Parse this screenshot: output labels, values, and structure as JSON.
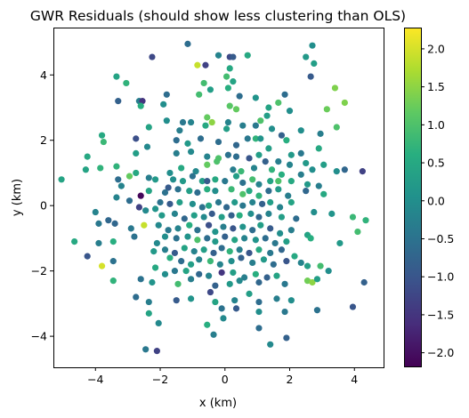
{
  "chart_data": {
    "type": "scatter",
    "title": "GWR Residuals (should show less clustering than OLS)",
    "xlabel": "x (km)",
    "ylabel": "y (km)",
    "xlim": [
      -5.3,
      4.9
    ],
    "ylim": [
      -4.95,
      5.45
    ],
    "xticks": [
      -4,
      -2,
      0,
      2,
      4
    ],
    "yticks": [
      -4,
      -2,
      0,
      2,
      4
    ],
    "grid": false,
    "colorbar": {
      "colormap": "viridis",
      "range": [
        -2.18,
        2.28
      ],
      "ticks": [
        -2.0,
        -1.5,
        -1.0,
        -0.5,
        0.0,
        0.5,
        1.0,
        1.5,
        2.0
      ],
      "tick_labels": [
        "−2.0",
        "−1.5",
        "−1.0",
        "−0.5",
        "0.0",
        "0.5",
        "1.0",
        "1.5",
        "2.0"
      ]
    },
    "points": [
      [
        -1.15,
        4.95,
        -0.6
      ],
      [
        -0.2,
        4.6,
        -0.2
      ],
      [
        0.15,
        4.55,
        -1.2
      ],
      [
        0.25,
        4.55,
        -0.9
      ],
      [
        0.7,
        4.6,
        0.5
      ],
      [
        2.7,
        4.9,
        0.0
      ],
      [
        -2.25,
        4.55,
        -1.2
      ],
      [
        -0.85,
        4.3,
        1.9
      ],
      [
        -0.6,
        4.3,
        -1.3
      ],
      [
        0.15,
        4.2,
        0.5
      ],
      [
        2.5,
        4.55,
        0.2
      ],
      [
        2.75,
        4.35,
        0.3
      ],
      [
        0.05,
        3.95,
        0.9
      ],
      [
        0.25,
        3.8,
        0.4
      ],
      [
        -3.35,
        3.95,
        0.4
      ],
      [
        -3.05,
        3.75,
        0.7
      ],
      [
        -0.65,
        3.75,
        0.9
      ],
      [
        -0.45,
        3.55,
        0.3
      ],
      [
        0.1,
        3.6,
        0.6
      ],
      [
        2.65,
        3.95,
        -0.9
      ],
      [
        3.4,
        3.6,
        1.4
      ],
      [
        -1.8,
        3.4,
        -0.6
      ],
      [
        -0.8,
        3.4,
        0.9
      ],
      [
        -2.65,
        3.2,
        -0.3
      ],
      [
        -2.55,
        3.2,
        -1.5
      ],
      [
        -3.3,
        3.2,
        -0.8
      ],
      [
        0.45,
        3.35,
        -0.6
      ],
      [
        0.95,
        3.3,
        0.1
      ],
      [
        1.85,
        3.4,
        -0.6
      ],
      [
        -2.6,
        3.05,
        0.6
      ],
      [
        0.15,
        3.05,
        1.1
      ],
      [
        1.35,
        3.0,
        0.4
      ],
      [
        0.35,
        2.95,
        1.2
      ],
      [
        3.15,
        2.95,
        1.25
      ],
      [
        3.7,
        3.15,
        1.4
      ],
      [
        -0.55,
        2.7,
        1.2
      ],
      [
        -1.8,
        2.6,
        0.0
      ],
      [
        -1.3,
        2.55,
        -0.4
      ],
      [
        -1.05,
        2.55,
        -0.2
      ],
      [
        -0.4,
        2.55,
        1.5
      ],
      [
        -0.6,
        2.45,
        0.5
      ],
      [
        0.1,
        2.55,
        -0.2
      ],
      [
        1.1,
        2.6,
        1.0
      ],
      [
        1.3,
        2.75,
        0.3
      ],
      [
        2.0,
        2.9,
        0.0
      ],
      [
        -2.35,
        2.4,
        0.4
      ],
      [
        -1.4,
        2.3,
        -0.3
      ],
      [
        0.05,
        2.35,
        0.3
      ],
      [
        0.55,
        2.45,
        -0.3
      ],
      [
        0.95,
        2.45,
        -0.4
      ],
      [
        1.45,
        2.35,
        0.0
      ],
      [
        1.75,
        2.15,
        -0.8
      ],
      [
        1.9,
        2.0,
        0.6
      ],
      [
        2.35,
        2.3,
        0.0
      ],
      [
        3.45,
        2.4,
        1.0
      ],
      [
        -3.8,
        2.15,
        0.5
      ],
      [
        -4.25,
        1.5,
        0.5
      ],
      [
        -4.3,
        1.1,
        0.4
      ],
      [
        -3.75,
        1.95,
        0.8
      ],
      [
        -2.75,
        1.6,
        0.3
      ],
      [
        -2.75,
        2.05,
        -1.1
      ],
      [
        -2.4,
        1.8,
        -0.1
      ],
      [
        -1.5,
        2.0,
        -0.6
      ],
      [
        -1.15,
        1.9,
        0.2
      ],
      [
        -0.75,
        2.05,
        -0.6
      ],
      [
        -0.2,
        1.95,
        -0.6
      ],
      [
        0.35,
        1.85,
        -0.7
      ],
      [
        0.7,
        2.05,
        -0.4
      ],
      [
        0.95,
        2.05,
        0.7
      ],
      [
        1.1,
        2.05,
        0.1
      ],
      [
        1.35,
        1.75,
        0.3
      ],
      [
        2.05,
        1.55,
        0.2
      ],
      [
        2.35,
        1.6,
        -0.4
      ],
      [
        2.9,
        1.75,
        0.5
      ],
      [
        -1.5,
        1.6,
        -0.3
      ],
      [
        -1.05,
        1.65,
        -0.1
      ],
      [
        -0.55,
        1.5,
        -0.2
      ],
      [
        -0.2,
        1.45,
        1.0
      ],
      [
        0.1,
        1.55,
        -0.5
      ],
      [
        0.35,
        1.5,
        -0.6
      ],
      [
        0.75,
        1.45,
        -1.0
      ],
      [
        1.05,
        1.55,
        0.3
      ],
      [
        1.25,
        1.35,
        -0.8
      ],
      [
        1.65,
        1.35,
        -0.3
      ],
      [
        2.0,
        1.25,
        -0.2
      ],
      [
        2.5,
        1.3,
        0.2
      ],
      [
        3.05,
        1.25,
        0.3
      ],
      [
        3.7,
        1.1,
        -0.7
      ],
      [
        -3.85,
        1.15,
        0.7
      ],
      [
        -3.35,
        1.2,
        0.7
      ],
      [
        -2.75,
        1.0,
        0.5
      ],
      [
        -2.35,
        0.85,
        -0.3
      ],
      [
        -1.7,
        1.0,
        0.0
      ],
      [
        -1.35,
        1.15,
        0.5
      ],
      [
        -0.9,
        1.05,
        -0.1
      ],
      [
        -0.55,
        1.25,
        1.2
      ],
      [
        -0.25,
        1.35,
        1.0
      ],
      [
        0.25,
        1.1,
        -0.3
      ],
      [
        0.5,
        1.05,
        0.8
      ],
      [
        0.9,
        1.15,
        -0.2
      ],
      [
        1.45,
        1.1,
        0.7
      ],
      [
        1.75,
        0.95,
        0.6
      ],
      [
        2.35,
        0.95,
        -0.3
      ],
      [
        2.7,
        1.1,
        0.0
      ],
      [
        3.45,
        1.05,
        0.0
      ],
      [
        4.25,
        1.05,
        -1.3
      ],
      [
        -5.05,
        0.8,
        0.4
      ],
      [
        -3.3,
        0.8,
        -0.6
      ],
      [
        -3.2,
        0.6,
        -0.2
      ],
      [
        -2.95,
        0.9,
        1.2
      ],
      [
        -2.15,
        0.8,
        0.2
      ],
      [
        -1.75,
        0.55,
        -0.9
      ],
      [
        -1.6,
        0.8,
        0.0
      ],
      [
        -1.3,
        0.75,
        0.2
      ],
      [
        -1.0,
        0.9,
        -0.5
      ],
      [
        -0.7,
        0.75,
        0.3
      ],
      [
        -0.55,
        0.75,
        -0.9
      ],
      [
        -0.3,
        0.8,
        0.5
      ],
      [
        0.0,
        0.75,
        -0.4
      ],
      [
        0.35,
        0.9,
        0.3
      ],
      [
        0.55,
        0.7,
        -0.5
      ],
      [
        0.85,
        0.8,
        0.9
      ],
      [
        1.05,
        0.65,
        -0.2
      ],
      [
        1.4,
        0.75,
        0.4
      ],
      [
        1.65,
        0.75,
        1.0
      ],
      [
        2.05,
        0.75,
        0.5
      ],
      [
        2.55,
        0.65,
        0.2
      ],
      [
        2.9,
        0.6,
        -0.3
      ],
      [
        -3.35,
        0.25,
        -0.2
      ],
      [
        -2.6,
        0.3,
        -2.1
      ],
      [
        -2.35,
        0.45,
        0.4
      ],
      [
        -1.85,
        0.4,
        -0.5
      ],
      [
        -1.45,
        0.5,
        -0.5
      ],
      [
        -1.1,
        0.45,
        0.3
      ],
      [
        -0.85,
        0.4,
        -0.6
      ],
      [
        -0.55,
        0.5,
        0.6
      ],
      [
        -0.3,
        0.45,
        0.0
      ],
      [
        0.2,
        0.5,
        0.8
      ],
      [
        0.55,
        0.35,
        1.0
      ],
      [
        0.75,
        0.45,
        0.5
      ],
      [
        1.05,
        0.3,
        0.7
      ],
      [
        1.35,
        0.45,
        -0.6
      ],
      [
        1.65,
        0.5,
        0.2
      ],
      [
        1.95,
        0.3,
        -0.3
      ],
      [
        2.5,
        0.45,
        -0.7
      ],
      [
        -4.0,
        -0.2,
        -0.2
      ],
      [
        -3.6,
        -0.45,
        -0.7
      ],
      [
        -3.4,
        -0.55,
        -0.7
      ],
      [
        -2.65,
        -0.05,
        -1.3
      ],
      [
        -2.15,
        -0.1,
        0.1
      ],
      [
        -2.0,
        0.1,
        -0.5
      ],
      [
        -1.7,
        0.05,
        -0.9
      ],
      [
        -1.4,
        0.1,
        0.3
      ],
      [
        -1.0,
        0.05,
        0.0
      ],
      [
        -0.7,
        -0.05,
        -0.5
      ],
      [
        -0.5,
        0.0,
        0.4
      ],
      [
        -0.2,
        0.1,
        -0.4
      ],
      [
        0.05,
        -0.05,
        -0.7
      ],
      [
        0.3,
        0.1,
        0.2
      ],
      [
        0.55,
        0.0,
        -0.4
      ],
      [
        0.85,
        0.1,
        -0.2
      ],
      [
        1.15,
        0.05,
        -0.8
      ],
      [
        1.4,
        0.1,
        0.3
      ],
      [
        1.7,
        -0.05,
        -0.2
      ],
      [
        2.05,
        0.1,
        0.4
      ],
      [
        2.75,
        -0.2,
        0.0
      ],
      [
        3.3,
        -0.25,
        0.1
      ],
      [
        -2.45,
        -0.15,
        -0.1
      ],
      [
        -1.95,
        -0.3,
        0.2
      ],
      [
        -1.55,
        -0.25,
        -0.2
      ],
      [
        -1.25,
        -0.4,
        -0.7
      ],
      [
        -0.95,
        -0.3,
        0.3
      ],
      [
        -0.65,
        -0.35,
        -0.1
      ],
      [
        -0.4,
        -0.25,
        -0.9
      ],
      [
        -0.1,
        -0.35,
        0.3
      ],
      [
        0.2,
        -0.3,
        -0.8
      ],
      [
        0.45,
        -0.3,
        0.6
      ],
      [
        0.8,
        -0.25,
        0.0
      ],
      [
        1.05,
        -0.35,
        -0.7
      ],
      [
        1.35,
        -0.25,
        -0.2
      ],
      [
        1.75,
        -0.35,
        0.3
      ],
      [
        2.2,
        -0.4,
        -0.6
      ],
      [
        3.95,
        -0.35,
        0.8
      ],
      [
        4.35,
        -0.45,
        0.7
      ],
      [
        -3.9,
        -0.55,
        -0.4
      ],
      [
        -2.9,
        -0.7,
        -0.4
      ],
      [
        -2.5,
        -0.6,
        1.9
      ],
      [
        -2.05,
        -0.6,
        -0.1
      ],
      [
        -1.75,
        -0.75,
        -0.4
      ],
      [
        -1.45,
        -0.7,
        -0.2
      ],
      [
        -1.1,
        -0.6,
        0.6
      ],
      [
        -0.85,
        -0.75,
        -0.5
      ],
      [
        -0.5,
        -0.6,
        -1.1
      ],
      [
        -0.3,
        -0.8,
        0.1
      ],
      [
        -0.05,
        -0.65,
        -0.3
      ],
      [
        0.25,
        -0.7,
        -1.0
      ],
      [
        0.55,
        -0.65,
        0.1
      ],
      [
        0.85,
        -0.75,
        -0.6
      ],
      [
        1.1,
        -0.6,
        0.3
      ],
      [
        1.4,
        -0.7,
        -0.9
      ],
      [
        1.7,
        -0.85,
        0.0
      ],
      [
        2.05,
        -0.75,
        -0.3
      ],
      [
        2.55,
        -0.9,
        0.4
      ],
      [
        -4.65,
        -1.1,
        0.5
      ],
      [
        -3.9,
        -1.15,
        -0.3
      ],
      [
        -3.45,
        -1.1,
        0.6
      ],
      [
        -2.8,
        -0.95,
        -0.5
      ],
      [
        -2.1,
        -1.15,
        -0.1
      ],
      [
        -1.85,
        -0.95,
        0.0
      ],
      [
        -1.5,
        -1.0,
        -0.5
      ],
      [
        -1.15,
        -0.95,
        0.1
      ],
      [
        -0.85,
        -1.05,
        1.0
      ],
      [
        -0.55,
        -1.0,
        -0.6
      ],
      [
        -0.3,
        -1.1,
        0.2
      ],
      [
        0.0,
        -0.95,
        -0.8
      ],
      [
        0.3,
        -1.05,
        0.4
      ],
      [
        0.6,
        -1.0,
        -0.2
      ],
      [
        0.95,
        -1.05,
        0.1
      ],
      [
        1.25,
        -1.0,
        -0.6
      ],
      [
        1.55,
        -1.15,
        -0.4
      ],
      [
        1.9,
        -1.1,
        0.3
      ],
      [
        2.65,
        -1.0,
        0.6
      ],
      [
        4.1,
        -0.8,
        0.9
      ],
      [
        -2.2,
        -1.4,
        0.2
      ],
      [
        -1.85,
        -1.35,
        -0.3
      ],
      [
        -1.55,
        -1.45,
        -0.9
      ],
      [
        -1.25,
        -1.3,
        0.4
      ],
      [
        -0.95,
        -1.4,
        -0.2
      ],
      [
        -0.65,
        -1.35,
        0.3
      ],
      [
        -0.35,
        -1.45,
        -0.8
      ],
      [
        -0.1,
        -1.3,
        -0.6
      ],
      [
        0.15,
        -1.4,
        0.7
      ],
      [
        0.45,
        -1.35,
        -0.3
      ],
      [
        0.75,
        -1.45,
        -1.0
      ],
      [
        1.05,
        -1.35,
        0.5
      ],
      [
        1.4,
        -1.45,
        -0.4
      ],
      [
        1.75,
        -1.35,
        -0.7
      ],
      [
        -4.25,
        -1.55,
        -1.0
      ],
      [
        -3.45,
        -1.7,
        -0.5
      ],
      [
        -1.7,
        -1.6,
        0.6
      ],
      [
        -1.35,
        -1.7,
        -0.6
      ],
      [
        -1.05,
        -1.8,
        0.3
      ],
      [
        -0.8,
        -1.65,
        -0.2
      ],
      [
        -0.45,
        -1.7,
        0.8
      ],
      [
        -0.15,
        -1.8,
        -0.2
      ],
      [
        0.2,
        -1.7,
        0.0
      ],
      [
        0.5,
        -1.6,
        -0.8
      ],
      [
        0.85,
        -1.75,
        -0.3
      ],
      [
        1.2,
        -1.65,
        0.2
      ],
      [
        1.5,
        -1.8,
        -0.6
      ],
      [
        1.9,
        -1.7,
        -1.0
      ],
      [
        2.15,
        -1.55,
        0.5
      ],
      [
        2.35,
        -1.75,
        -0.2
      ],
      [
        2.55,
        -1.85,
        0.3
      ],
      [
        2.95,
        -1.85,
        0.9
      ],
      [
        3.2,
        -2.0,
        0.0
      ],
      [
        -3.8,
        -1.85,
        2.0
      ],
      [
        -2.15,
        -1.9,
        0.5
      ],
      [
        -1.85,
        -2.1,
        0.0
      ],
      [
        -1.55,
        -2.0,
        -0.4
      ],
      [
        -1.2,
        -2.0,
        0.4
      ],
      [
        -0.8,
        -2.1,
        -0.7
      ],
      [
        -0.5,
        -2.15,
        -0.2
      ],
      [
        -0.1,
        -2.05,
        -1.5
      ],
      [
        0.25,
        -2.05,
        0.3
      ],
      [
        0.6,
        -2.2,
        -0.3
      ],
      [
        0.95,
        -2.1,
        0.6
      ],
      [
        1.3,
        -2.2,
        -0.8
      ],
      [
        1.6,
        -2.15,
        0.4
      ],
      [
        -3.45,
        -2.3,
        0.7
      ],
      [
        -2.6,
        -2.25,
        -0.5
      ],
      [
        -2.25,
        -2.35,
        0.1
      ],
      [
        -1.45,
        -2.4,
        0.9
      ],
      [
        -1.05,
        -2.25,
        -0.3
      ],
      [
        -0.3,
        -2.45,
        -0.8
      ],
      [
        0.15,
        -2.4,
        0.2
      ],
      [
        0.45,
        -2.3,
        -0.1
      ],
      [
        1.05,
        -2.35,
        -0.7
      ],
      [
        1.85,
        -2.4,
        -0.4
      ],
      [
        2.55,
        -2.3,
        1.3
      ],
      [
        2.7,
        -2.35,
        1.5
      ],
      [
        2.85,
        -2.25,
        0.3
      ],
      [
        4.3,
        -2.35,
        -0.8
      ],
      [
        -2.75,
        -2.8,
        -0.6
      ],
      [
        -2.35,
        -2.95,
        -0.3
      ],
      [
        -1.5,
        -2.9,
        -0.9
      ],
      [
        -1.05,
        -2.85,
        0.1
      ],
      [
        -0.3,
        -2.95,
        0.4
      ],
      [
        0.3,
        -2.9,
        -0.2
      ],
      [
        1.05,
        -2.95,
        -0.6
      ],
      [
        1.6,
        -2.85,
        -0.3
      ],
      [
        2.05,
        -2.9,
        0.0
      ],
      [
        -2.35,
        -3.3,
        0.4
      ],
      [
        -0.1,
        -3.15,
        -0.5
      ],
      [
        0.35,
        -3.15,
        -0.9
      ],
      [
        1.05,
        -3.25,
        0.0
      ],
      [
        1.85,
        -3.25,
        -0.4
      ],
      [
        2.85,
        -3.2,
        -0.5
      ],
      [
        3.95,
        -3.1,
        -1.0
      ],
      [
        -2.05,
        -3.6,
        -0.1
      ],
      [
        -0.05,
        -3.45,
        -0.1
      ],
      [
        1.05,
        -3.75,
        -0.6
      ],
      [
        1.9,
        -4.05,
        -0.8
      ],
      [
        -0.35,
        -3.95,
        -0.3
      ],
      [
        1.4,
        -4.25,
        -0.1
      ],
      [
        -2.45,
        -4.4,
        -0.4
      ],
      [
        -2.1,
        -4.45,
        -1.3
      ],
      [
        -0.55,
        -3.65,
        0.6
      ],
      [
        3.55,
        -1.15,
        0.2
      ],
      [
        -1.9,
        3.1,
        0.0
      ],
      [
        1.65,
        3.15,
        1.0
      ],
      [
        2.95,
        2.2,
        -0.3
      ],
      [
        -2.95,
        0.15,
        -0.6
      ],
      [
        3.05,
        0.35,
        0.5
      ],
      [
        -0.45,
        -2.65,
        -1.2
      ],
      [
        0.75,
        -2.7,
        0.3
      ]
    ]
  }
}
